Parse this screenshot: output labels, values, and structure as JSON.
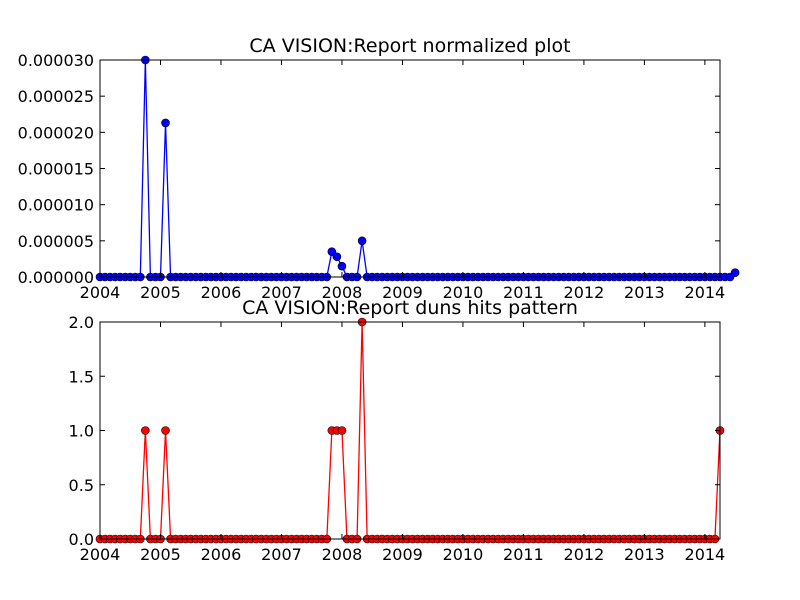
{
  "chart_data": [
    {
      "type": "line",
      "title": "CA VISION:Report normalized plot",
      "xlabel": "",
      "ylabel": "",
      "xlim": [
        2004.0,
        2014.25
      ],
      "ylim": [
        0,
        3e-05
      ],
      "xticks": [
        2004,
        2005,
        2006,
        2007,
        2008,
        2009,
        2010,
        2011,
        2012,
        2013,
        2014
      ],
      "xtick_labels": [
        "2004",
        "2005",
        "2006",
        "2007",
        "2008",
        "2009",
        "2010",
        "2011",
        "2012",
        "2013",
        "2014"
      ],
      "yticks": [
        0,
        5e-06,
        1e-05,
        1.5e-05,
        2e-05,
        2.5e-05,
        3e-05
      ],
      "ytick_labels": [
        "0.000000",
        "0.000005",
        "0.000010",
        "0.000015",
        "0.000020",
        "0.000025",
        "0.000030"
      ],
      "grid": false,
      "x_start": 2004.0,
      "x_step": 0.08333,
      "series": [
        {
          "color": "#0000ff",
          "values": [
            0,
            0,
            0,
            0,
            0,
            0,
            0,
            0,
            0,
            3e-05,
            0,
            0,
            0,
            2.13e-05,
            0,
            0,
            0,
            0,
            0,
            0,
            0,
            0,
            0,
            0,
            0,
            0,
            0,
            0,
            0,
            0,
            0,
            0,
            0,
            0,
            0,
            0,
            0,
            0,
            0,
            0,
            0,
            0,
            0,
            0,
            0,
            0,
            3.5e-06,
            2.8e-06,
            1.5e-06,
            0,
            0,
            0,
            5e-06,
            0,
            0,
            0,
            0,
            0,
            0,
            0,
            0,
            0,
            0,
            0,
            0,
            0,
            0,
            0,
            0,
            0,
            0,
            0,
            0,
            0,
            0,
            0,
            0,
            0,
            0,
            0,
            0,
            0,
            0,
            0,
            0,
            0,
            0,
            0,
            0,
            0,
            0,
            0,
            0,
            0,
            0,
            0,
            0,
            0,
            0,
            0,
            0,
            0,
            0,
            0,
            0,
            0,
            0,
            0,
            0,
            0,
            0,
            0,
            0,
            0,
            0,
            0,
            0,
            0,
            0,
            0,
            0,
            0,
            0,
            0,
            0,
            0,
            6e-07
          ]
        }
      ]
    },
    {
      "type": "line",
      "title": "CA VISION:Report duns hits pattern",
      "xlabel": "",
      "ylabel": "",
      "xlim": [
        2004.0,
        2014.25
      ],
      "ylim": [
        0,
        2.0
      ],
      "xticks": [
        2004,
        2005,
        2006,
        2007,
        2008,
        2009,
        2010,
        2011,
        2012,
        2013,
        2014
      ],
      "xtick_labels": [
        "2004",
        "2005",
        "2006",
        "2007",
        "2008",
        "2009",
        "2010",
        "2011",
        "2012",
        "2013",
        "2014"
      ],
      "yticks": [
        0,
        0.5,
        1.0,
        1.5,
        2.0
      ],
      "ytick_labels": [
        "0.0",
        "0.5",
        "1.0",
        "1.5",
        "2.0"
      ],
      "grid": false,
      "x_start": 2004.0,
      "x_step": 0.08333,
      "series": [
        {
          "color": "#ff0000",
          "values": [
            0,
            0,
            0,
            0,
            0,
            0,
            0,
            0,
            0,
            1,
            0,
            0,
            0,
            1,
            0,
            0,
            0,
            0,
            0,
            0,
            0,
            0,
            0,
            0,
            0,
            0,
            0,
            0,
            0,
            0,
            0,
            0,
            0,
            0,
            0,
            0,
            0,
            0,
            0,
            0,
            0,
            0,
            0,
            0,
            0,
            0,
            1,
            1,
            1,
            0,
            0,
            0,
            2,
            0,
            0,
            0,
            0,
            0,
            0,
            0,
            0,
            0,
            0,
            0,
            0,
            0,
            0,
            0,
            0,
            0,
            0,
            0,
            0,
            0,
            0,
            0,
            0,
            0,
            0,
            0,
            0,
            0,
            0,
            0,
            0,
            0,
            0,
            0,
            0,
            0,
            0,
            0,
            0,
            0,
            0,
            0,
            0,
            0,
            0,
            0,
            0,
            0,
            0,
            0,
            0,
            0,
            0,
            0,
            0,
            0,
            0,
            0,
            0,
            0,
            0,
            0,
            0,
            0,
            0,
            0,
            0,
            0,
            0,
            1
          ]
        }
      ]
    }
  ]
}
